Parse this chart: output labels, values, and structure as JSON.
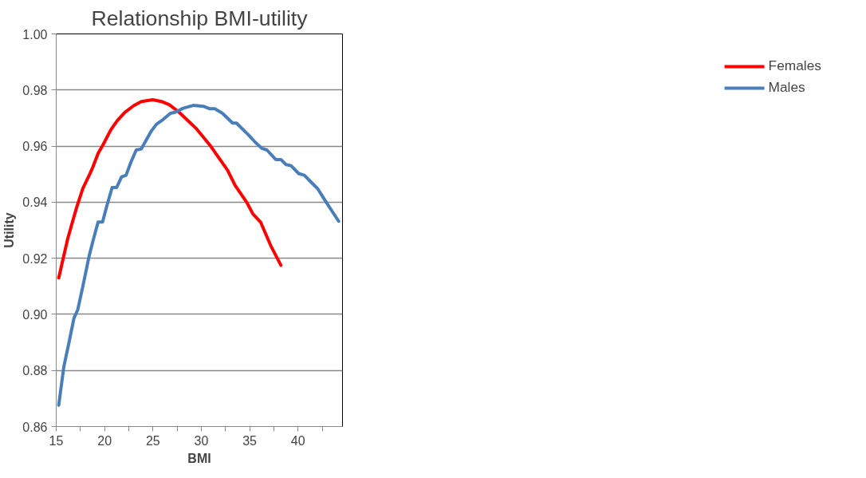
{
  "chart_data": {
    "type": "line",
    "title": "Relationship BMI-utility",
    "xlabel": "BMI",
    "ylabel": "Utility",
    "xlim": [
      15,
      44.6
    ],
    "xticks": [
      15,
      {
        "value": 17.5,
        "label": null
      },
      20,
      {
        "value": 22.5,
        "label": null
      },
      25,
      {
        "value": 27.5,
        "label": null
      },
      30,
      {
        "value": 32.5,
        "label": null
      },
      35,
      {
        "value": 37.5,
        "label": null
      },
      40,
      {
        "value": 42.5,
        "label": null
      }
    ],
    "ylim": [
      0.86,
      1.0
    ],
    "yticks": [
      {
        "value": 0.86,
        "label": "0.86"
      },
      {
        "value": 0.88,
        "label": "0.88"
      },
      {
        "value": 0.9,
        "label": "0.90"
      },
      {
        "value": 0.92,
        "label": "0.92"
      },
      {
        "value": 0.94,
        "label": "0.94"
      },
      {
        "value": 0.96,
        "label": "0.96"
      },
      {
        "value": 0.98,
        "label": "0.98"
      },
      {
        "value": 1.0,
        "label": "1.00"
      }
    ],
    "grid": "y",
    "legend": "right",
    "marker": "none",
    "line_style": "solid",
    "series": [
      {
        "name": "Females",
        "color": "#ff0000",
        "x": [
          15.26,
          16.19,
          17.1,
          17.76,
          18.41,
          18.8,
          19.33,
          19.86,
          20.65,
          21.3,
          22.09,
          23.0,
          23.8,
          24.98,
          25.89,
          26.68,
          27.6,
          28.65,
          29.44,
          30.88,
          32.72,
          33.5,
          34.69,
          35.34,
          36.13,
          37.18,
          38.23
        ],
        "values": [
          0.913,
          0.927,
          0.938,
          0.945,
          0.9496,
          0.9526,
          0.9574,
          0.9606,
          0.9658,
          0.969,
          0.972,
          0.9744,
          0.9759,
          0.9765,
          0.9759,
          0.9748,
          0.9724,
          0.969,
          0.9664,
          0.9604,
          0.9514,
          0.946,
          0.94,
          0.9358,
          0.9329,
          0.9245,
          0.9175
        ]
      },
      {
        "name": "Males",
        "color": "#4a7ebb",
        "x": [
          15.26,
          15.79,
          16.31,
          16.84,
          17.23,
          17.76,
          18.41,
          18.81,
          19.33,
          19.79,
          20.25,
          20.78,
          21.24,
          21.76,
          22.22,
          22.74,
          23.27,
          23.8,
          24.32,
          24.84,
          25.37,
          26.02,
          26.81,
          27.34,
          28.13,
          29.17,
          30.22,
          30.88,
          31.4,
          32.19,
          33.24,
          33.64,
          34.82,
          35.6,
          36.26,
          36.79,
          37.7,
          38.23,
          38.76,
          39.28,
          40.07,
          40.66,
          41.25,
          42.04,
          42.69,
          44.2
        ],
        "values": [
          0.8676,
          0.8814,
          0.8898,
          0.8987,
          0.9017,
          0.9101,
          0.9209,
          0.9263,
          0.9329,
          0.9329,
          0.9389,
          0.9452,
          0.9452,
          0.949,
          0.9496,
          0.9544,
          0.9586,
          0.959,
          0.9622,
          0.9654,
          0.9678,
          0.9694,
          0.9717,
          0.9721,
          0.9735,
          0.9745,
          0.9742,
          0.9733,
          0.9733,
          0.9717,
          0.9682,
          0.9682,
          0.9642,
          0.9613,
          0.9592,
          0.9586,
          0.9552,
          0.9552,
          0.9534,
          0.953,
          0.9502,
          0.9496,
          0.9475,
          0.9448,
          0.9412,
          0.9332
        ]
      }
    ]
  }
}
